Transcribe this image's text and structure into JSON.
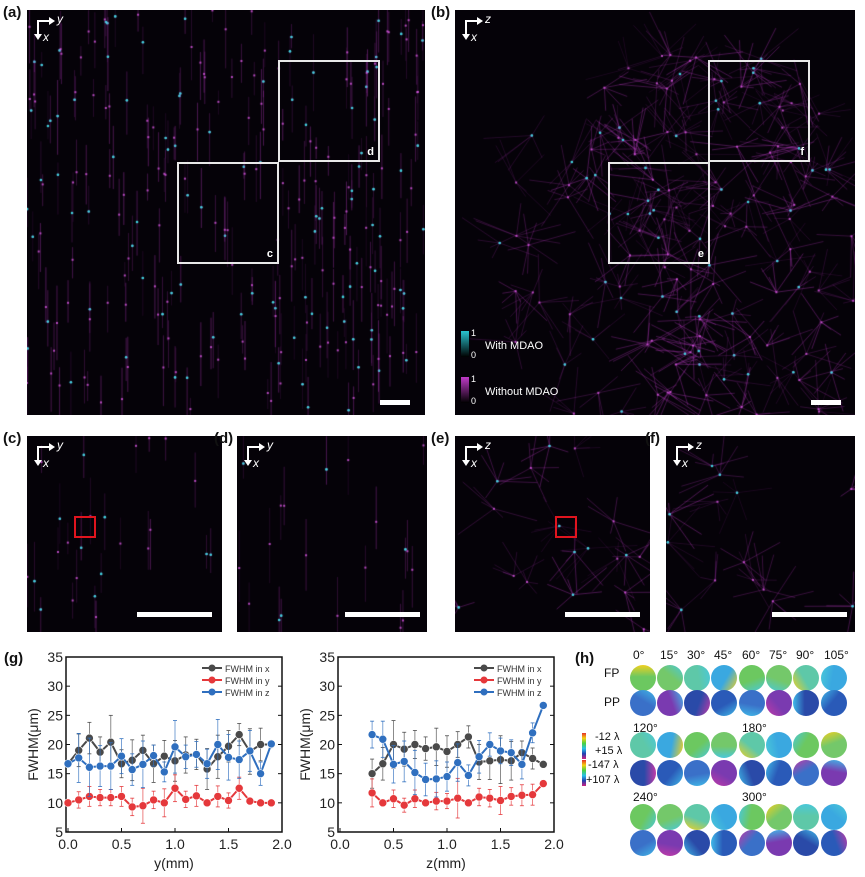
{
  "panels": {
    "a": {
      "label": "(a)",
      "axis_h": "y",
      "axis_v": "x",
      "boxes": [
        "d",
        "c"
      ]
    },
    "b": {
      "label": "(b)",
      "axis_h": "z",
      "axis_v": "x",
      "boxes": [
        "f",
        "e"
      ],
      "legend": [
        {
          "name": "With MDAO",
          "max": "1",
          "min": "0",
          "color": "#29c4d0"
        },
        {
          "name": "Without MDAO",
          "max": "1",
          "min": "0",
          "color": "#c03ac8"
        }
      ]
    },
    "c": {
      "label": "(c)",
      "axis_h": "y",
      "axis_v": "x"
    },
    "d": {
      "label": "(d)",
      "axis_h": "y",
      "axis_v": "x"
    },
    "e": {
      "label": "(e)",
      "axis_h": "z",
      "axis_v": "x"
    },
    "f": {
      "label": "(f)",
      "axis_h": "z",
      "axis_v": "x"
    },
    "g": {
      "label": "(g)"
    },
    "h": {
      "label": "(h)",
      "angles_row1": [
        "0°",
        "15°",
        "30°",
        "45°",
        "60°",
        "75°",
        "90°",
        "105°"
      ],
      "row_labels": [
        "FP",
        "PP"
      ],
      "angle_120": "120°",
      "angle_180": "180°",
      "angle_240": "240°",
      "angle_300": "300°",
      "colorbar": [
        "-12 λ",
        "+15 λ",
        "-147 λ",
        "+107 λ"
      ]
    }
  },
  "chart_data": [
    {
      "type": "line",
      "xlabel": "y(mm)",
      "ylabel": "FWHM(μm)",
      "xlim": [
        0,
        2.0
      ],
      "ylim": [
        5,
        35
      ],
      "xticks": [
        "0.0",
        "0.5",
        "1.0",
        "1.5",
        "2.0"
      ],
      "yticks": [
        "5",
        "10",
        "15",
        "20",
        "25",
        "30",
        "35"
      ],
      "legend_position": "top-right",
      "x": [
        0,
        0.1,
        0.2,
        0.3,
        0.4,
        0.5,
        0.6,
        0.7,
        0.8,
        0.9,
        1.0,
        1.1,
        1.2,
        1.3,
        1.4,
        1.5,
        1.6,
        1.7,
        1.8,
        1.9
      ],
      "series": [
        {
          "name": "FWHM in x",
          "color": "#4a4a4a",
          "values": [
            16.7,
            19,
            21.1,
            18.7,
            20.4,
            16.7,
            17.3,
            19,
            16.7,
            18,
            17.2,
            18.2,
            18.3,
            15.8,
            17.9,
            19.7,
            21.7,
            18.8,
            20,
            20
          ],
          "errors": [
            0.5,
            2.8,
            2.7,
            2.6,
            4.6,
            2.4,
            3.5,
            2.6,
            3.2,
            2.7,
            3.5,
            3.1,
            2.6,
            3.5,
            3.7,
            2.7,
            1.9,
            3.9,
            2.8,
            0.3
          ]
        },
        {
          "name": "FWHM in y",
          "color": "#e5383b",
          "values": [
            10,
            10.5,
            11.1,
            10.9,
            10.9,
            11.1,
            9.3,
            9.5,
            10.5,
            10,
            12.5,
            10.6,
            11.2,
            10,
            11.1,
            10.4,
            12.5,
            10.3,
            10,
            10
          ],
          "errors": [
            0.3,
            1.4,
            1.7,
            1.4,
            1.4,
            1.7,
            1.5,
            3,
            1.5,
            2.4,
            2.3,
            1.4,
            1.8,
            0.3,
            1.8,
            1.3,
            1.9,
            0.5,
            0.2,
            0.3
          ]
        },
        {
          "name": "FWHM in z",
          "color": "#2f6fbf",
          "values": [
            16.7,
            17.7,
            16.1,
            16.3,
            16.3,
            18,
            15.7,
            16.6,
            18.1,
            15.3,
            19.6,
            17.9,
            18.3,
            16.7,
            20,
            17.8,
            17.4,
            18.9,
            15,
            20.1
          ],
          "errors": [
            0.3,
            4.2,
            5,
            3.5,
            4,
            3,
            2.7,
            4,
            1.8,
            1.7,
            4.5,
            2,
            2.2,
            2.5,
            4.3,
            3.9,
            3.2,
            3.5,
            2,
            0.3
          ]
        }
      ]
    },
    {
      "type": "line",
      "xlabel": "z(mm)",
      "ylabel": "FWHM(μm)",
      "xlim": [
        0,
        2.0
      ],
      "ylim": [
        5,
        35
      ],
      "xticks": [
        "0.0",
        "0.5",
        "1.0",
        "1.5",
        "2.0"
      ],
      "yticks": [
        "5",
        "10",
        "15",
        "20",
        "25",
        "30",
        "35"
      ],
      "legend_position": "top-right",
      "x": [
        0.3,
        0.4,
        0.5,
        0.6,
        0.7,
        0.8,
        0.9,
        1.0,
        1.1,
        1.2,
        1.3,
        1.4,
        1.5,
        1.6,
        1.7,
        1.8,
        1.9
      ],
      "series": [
        {
          "name": "FWHM in x",
          "color": "#4a4a4a",
          "values": [
            15,
            16.7,
            20,
            19.2,
            20,
            19.3,
            19.6,
            18.8,
            20,
            21.3,
            17,
            17.2,
            17.4,
            17.2,
            18.6,
            17.6,
            16.6
          ],
          "errors": [
            2.5,
            2.8,
            4.1,
            2.9,
            2.4,
            2,
            3.2,
            2.7,
            2.2,
            1.9,
            3,
            3.2,
            4.1,
            3.3,
            2,
            1.8,
            0.3
          ]
        },
        {
          "name": "FWHM in y",
          "color": "#e5383b",
          "values": [
            11.7,
            10,
            10.7,
            9.6,
            10.7,
            10,
            10.3,
            10.3,
            10.8,
            10,
            11,
            10.8,
            10.4,
            11.1,
            11.3,
            11.4,
            13.3
          ],
          "errors": [
            2.4,
            0.5,
            1.5,
            1.2,
            1.5,
            0.5,
            1.5,
            1.3,
            3.4,
            0.5,
            1.5,
            1.5,
            2.4,
            1.5,
            1.8,
            1.8,
            0.3
          ]
        },
        {
          "name": "FWHM in z",
          "color": "#2f6fbf",
          "values": [
            21.7,
            20.9,
            16.6,
            17.1,
            15.2,
            14,
            14.1,
            14.5,
            16.9,
            14.7,
            17.9,
            20,
            18.9,
            18.6,
            16.6,
            22,
            26.7
          ],
          "errors": [
            2.3,
            3.1,
            3.2,
            3.5,
            3.8,
            2.8,
            3.1,
            2.5,
            3.2,
            1.8,
            2.8,
            2,
            2.2,
            2.2,
            2.5,
            1.7,
            0.3
          ]
        }
      ]
    }
  ]
}
